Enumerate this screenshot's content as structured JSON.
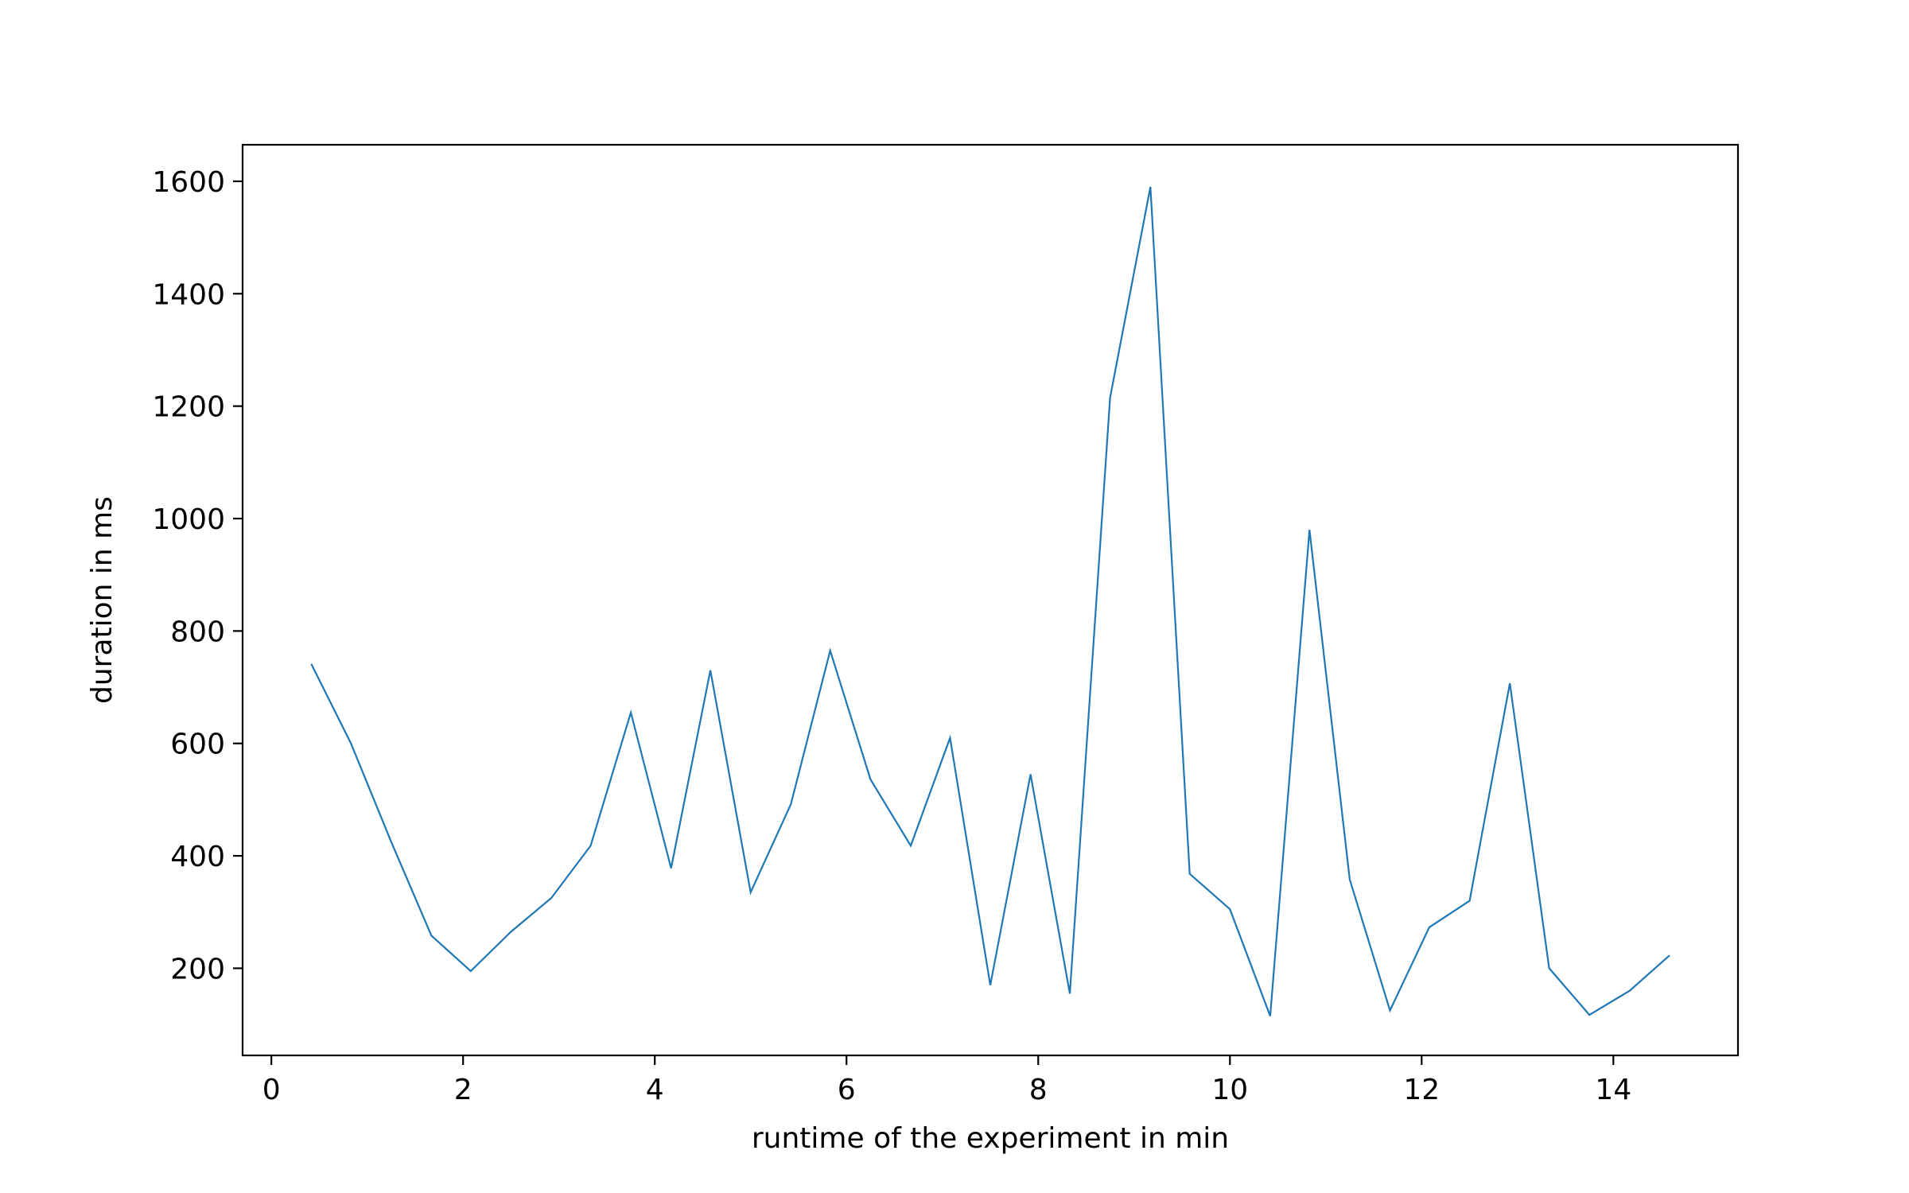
{
  "chart_data": {
    "type": "line",
    "title": "",
    "xlabel": "runtime of the experiment in min",
    "ylabel": "duration in ms",
    "xlim": [
      -0.3,
      15.3
    ],
    "ylim": [
      45,
      1665
    ],
    "xticks": [
      0,
      2,
      4,
      6,
      8,
      10,
      12,
      14
    ],
    "yticks": [
      200,
      400,
      600,
      800,
      1000,
      1200,
      1400,
      1600
    ],
    "grid": false,
    "legend": "none",
    "series": [
      {
        "color": "#1f77b4",
        "x": [
          0.42,
          0.83,
          1.25,
          1.67,
          2.08,
          2.5,
          2.92,
          3.33,
          3.75,
          4.17,
          4.58,
          5.0,
          5.42,
          5.83,
          6.25,
          6.67,
          7.08,
          7.5,
          7.92,
          8.33,
          8.75,
          9.17,
          9.58,
          10.0,
          10.42,
          10.83,
          11.25,
          11.67,
          12.08,
          12.5,
          12.92,
          13.33,
          13.75,
          14.17,
          14.58
        ],
        "y": [
          740,
          600,
          425,
          258,
          195,
          265,
          325,
          418,
          655,
          378,
          730,
          335,
          492,
          765,
          536,
          418,
          610,
          170,
          545,
          155,
          1215,
          1590,
          368,
          305,
          115,
          980,
          358,
          125,
          273,
          320,
          707,
          200,
          117,
          160,
          222
        ]
      }
    ]
  }
}
